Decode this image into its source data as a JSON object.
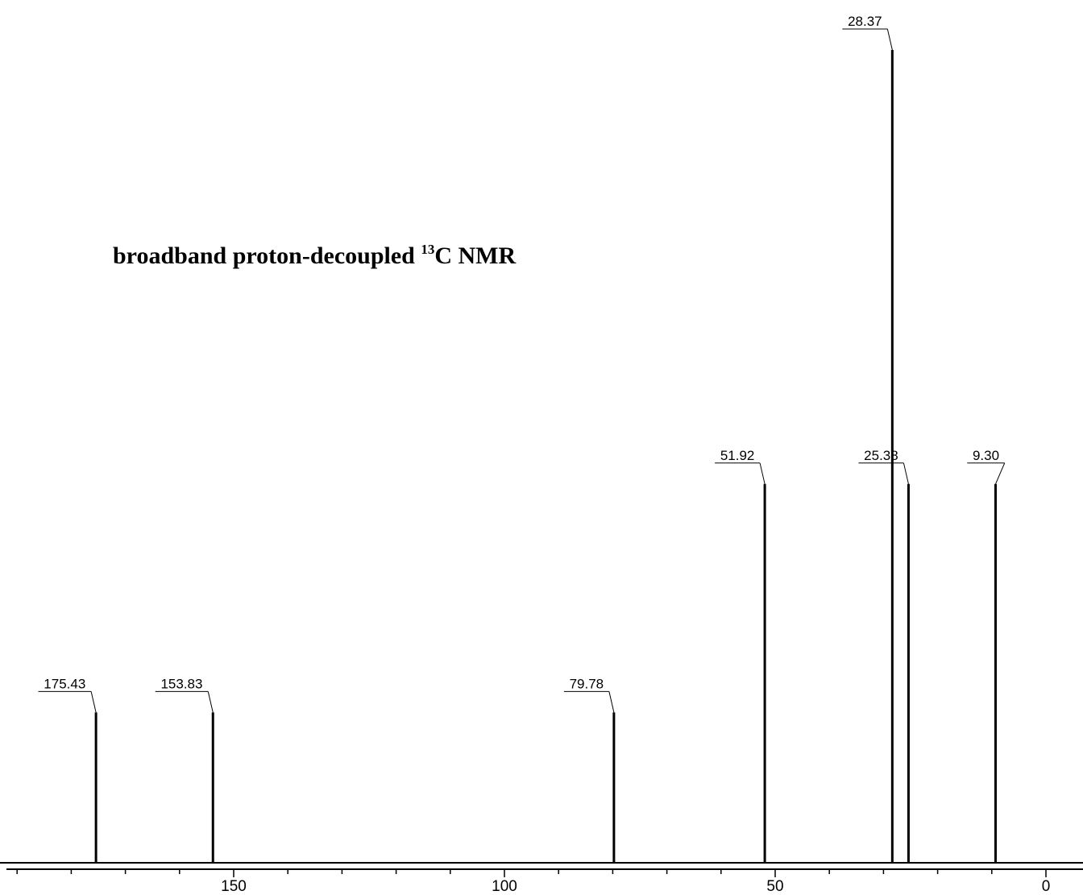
{
  "chart_data": {
    "type": "line",
    "title": {
      "prefix": "broadband proton-decoupled ",
      "superscript": "13",
      "suffix": "C NMR"
    },
    "xlabel": "",
    "ylabel": "",
    "x_axis": {
      "reversed": true,
      "xlim": [
        193,
        -6
      ],
      "major_ticks": [
        150,
        100,
        50,
        0
      ],
      "major_tick_labels": [
        "150",
        "100",
        "50",
        "0"
      ],
      "minor_tick_step": 10
    },
    "ylim": [
      0,
      1
    ],
    "grid": false,
    "peaks": [
      {
        "shift": 175.43,
        "label": "175.43",
        "intensity": 0.185
      },
      {
        "shift": 153.83,
        "label": "153.83",
        "intensity": 0.185
      },
      {
        "shift": 79.78,
        "label": "79.78",
        "intensity": 0.185
      },
      {
        "shift": 51.92,
        "label": "51.92",
        "intensity": 0.466
      },
      {
        "shift": 28.37,
        "label": "28.37",
        "intensity": 1.0
      },
      {
        "shift": 25.38,
        "label": "25.38",
        "intensity": 0.466
      },
      {
        "shift": 9.3,
        "label": "9.30",
        "intensity": 0.466
      }
    ]
  }
}
